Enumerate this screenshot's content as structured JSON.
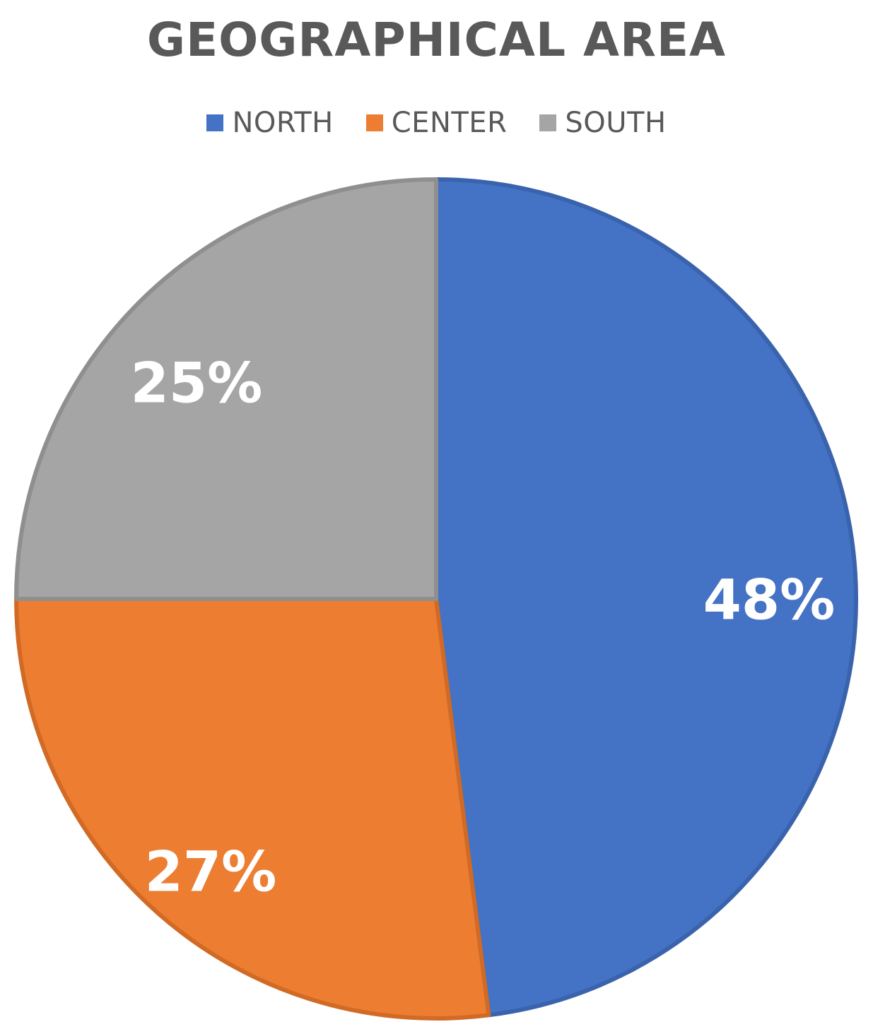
{
  "chart_data": {
    "type": "pie",
    "title": "GEOGRAPHICAL AREA",
    "categories": [
      "NORTH",
      "CENTER",
      "SOUTH"
    ],
    "values": [
      48,
      27,
      25
    ],
    "labels": [
      "48%",
      "27%",
      "25%"
    ],
    "colors": [
      "#4472C4",
      "#ED7D31",
      "#A5A5A5"
    ],
    "legend_position": "top"
  }
}
